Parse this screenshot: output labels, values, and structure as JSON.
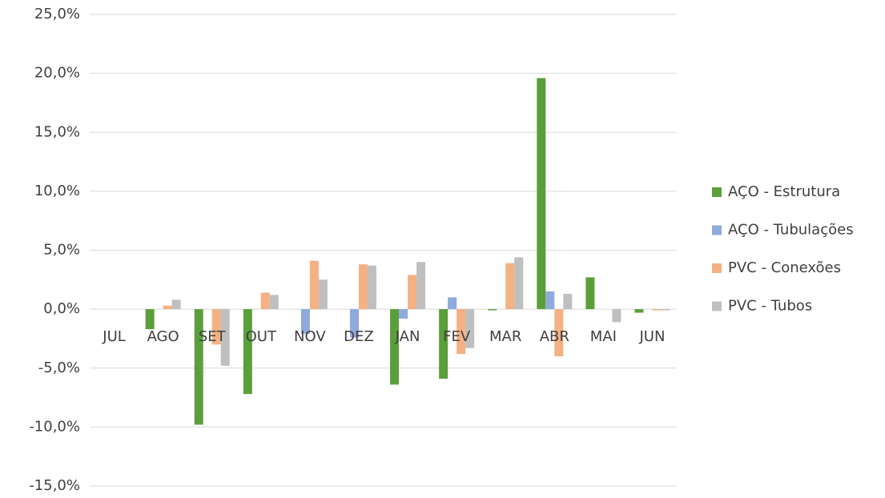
{
  "chart_data": {
    "type": "bar",
    "categories": [
      "JUL",
      "AGO",
      "SET",
      "OUT",
      "NOV",
      "DEZ",
      "JAN",
      "FEV",
      "MAR",
      "ABR",
      "MAI",
      "JUN"
    ],
    "series": [
      {
        "name": "AÇO - Estrutura",
        "color": "#5b9f3b",
        "values": [
          0,
          -1.7,
          -9.8,
          -7.2,
          0,
          0,
          -6.4,
          -5.9,
          -0.1,
          19.6,
          2.7,
          -0.3
        ]
      },
      {
        "name": "AÇO - Tubulações",
        "color": "#8faadc",
        "values": [
          0,
          0,
          0,
          0,
          -2.1,
          -2.4,
          -0.8,
          1.0,
          0,
          1.5,
          0,
          0
        ]
      },
      {
        "name": "PVC - Conexões",
        "color": "#f4b183",
        "values": [
          0,
          0.3,
          -3.0,
          1.4,
          4.1,
          3.8,
          2.9,
          -3.8,
          3.9,
          -4.0,
          0,
          -0.1
        ]
      },
      {
        "name": "PVC - Tubos",
        "color": "#bfbfbf",
        "values": [
          0,
          0.8,
          -4.8,
          1.2,
          2.5,
          3.7,
          4.0,
          -3.3,
          4.4,
          1.3,
          -1.1,
          -0.1
        ]
      }
    ],
    "ylim": [
      -15,
      25
    ],
    "yticks": [
      {
        "value": -15,
        "label": "-15,0%"
      },
      {
        "value": -10,
        "label": "-10,0%"
      },
      {
        "value": -5,
        "label": "-5,0%"
      },
      {
        "value": 0,
        "label": "0,0%"
      },
      {
        "value": 5,
        "label": "5,0%"
      },
      {
        "value": 10,
        "label": "10,0%"
      },
      {
        "value": 15,
        "label": "15,0%"
      },
      {
        "value": 20,
        "label": "20,0%"
      },
      {
        "value": 25,
        "label": "25,0%"
      }
    ],
    "grid": true,
    "legend": "right"
  }
}
